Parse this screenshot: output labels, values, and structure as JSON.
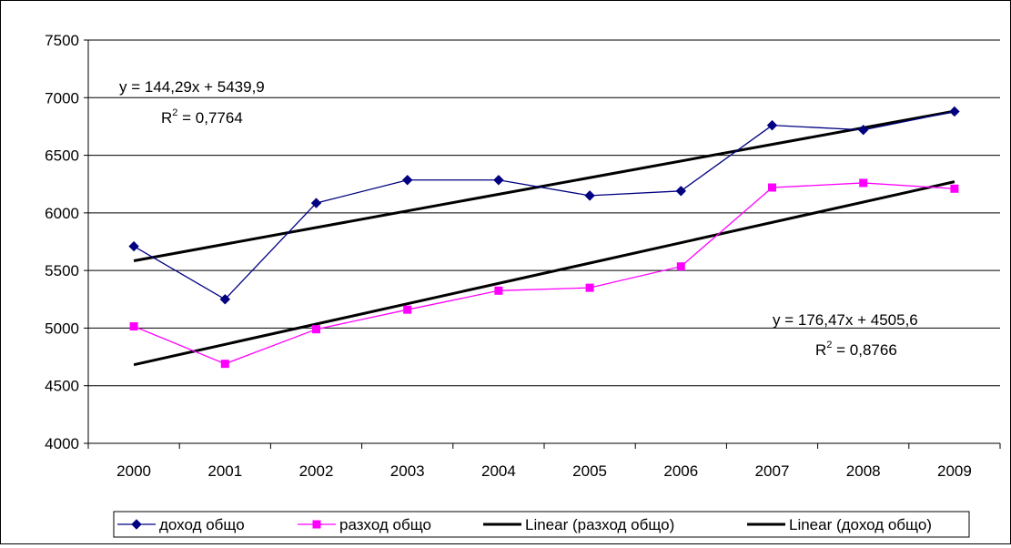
{
  "chart_data": {
    "type": "line",
    "categories": [
      "2000",
      "2001",
      "2002",
      "2003",
      "2004",
      "2005",
      "2006",
      "2007",
      "2008",
      "2009"
    ],
    "ylim": [
      4000,
      7500
    ],
    "yticks": [
      4000,
      4500,
      5000,
      5500,
      6000,
      6500,
      7000,
      7500
    ],
    "grid": true,
    "legend_position": "bottom",
    "series": [
      {
        "name": "доход общо",
        "color": "#000080",
        "marker": "diamond",
        "values": [
          5710,
          5250,
          6085,
          6285,
          6285,
          6150,
          6190,
          6760,
          6720,
          6880
        ]
      },
      {
        "name": "разход общо",
        "color": "#ff00ff",
        "marker": "square",
        "values": [
          5015,
          4690,
          4990,
          5160,
          5325,
          5350,
          5535,
          6220,
          6260,
          6210
        ]
      }
    ],
    "trendlines": [
      {
        "name": "Linear (разход общо)",
        "color": "#000000",
        "slope": 176.47,
        "intercept": 4505.6,
        "equation": "y = 176,47x + 4505,6",
        "r2_label": "R",
        "r2_sup": "2",
        "r2_value": " = 0,8766"
      },
      {
        "name": "Linear (доход общо)",
        "color": "#000000",
        "slope": 144.29,
        "intercept": 5439.9,
        "equation": "y = 144,29x + 5439,9",
        "r2_label": "R",
        "r2_sup": "2",
        "r2_value": " = 0,7764"
      }
    ]
  }
}
